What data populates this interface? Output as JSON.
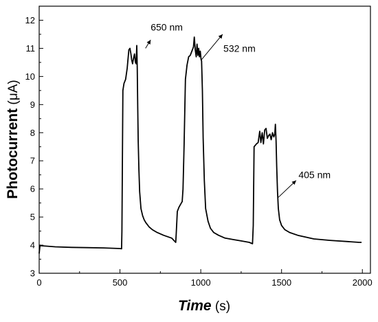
{
  "chart_data": {
    "type": "line",
    "title": "",
    "xlabel_main": "Time",
    "xlabel_unit": " (s)",
    "ylabel_main": "Photocurrent",
    "ylabel_unit": " (μA)",
    "xlim": [
      0,
      2050
    ],
    "ylim": [
      3,
      12.5
    ],
    "xticks": [
      0,
      500,
      1000,
      1500,
      2000
    ],
    "xtick_labels": [
      "0",
      "500",
      "1000",
      "1500",
      "2000"
    ],
    "yticks": [
      3,
      4,
      5,
      6,
      7,
      8,
      9,
      10,
      11,
      12
    ],
    "ytick_labels": [
      "3",
      "4",
      "5",
      "6",
      "7",
      "8",
      "9",
      "10",
      "11",
      "12"
    ],
    "grid": false,
    "series": [
      {
        "color": "#000000",
        "x": [
          0,
          5,
          10,
          100,
          200,
          300,
          400,
          500,
          510,
          512,
          518,
          525,
          535,
          545,
          555,
          562,
          568,
          572,
          578,
          584,
          590,
          596,
          600,
          604,
          607,
          610,
          613,
          617,
          622,
          630,
          640,
          650,
          660,
          680,
          700,
          730,
          770,
          820,
          845,
          848,
          855,
          865,
          875,
          885,
          890,
          897,
          905,
          915,
          925,
          935,
          945,
          955,
          960,
          966,
          972,
          977,
          982,
          987,
          992,
          997,
          1002,
          1005,
          1010,
          1015,
          1022,
          1030,
          1045,
          1060,
          1080,
          1110,
          1150,
          1200,
          1250,
          1300,
          1320,
          1325,
          1330,
          1345,
          1355,
          1365,
          1372,
          1380,
          1388,
          1396,
          1404,
          1412,
          1420,
          1428,
          1436,
          1444,
          1452,
          1458,
          1462,
          1466,
          1470,
          1475,
          1480,
          1488,
          1500,
          1520,
          1550,
          1600,
          1700,
          1800,
          1900,
          1980,
          1995
        ],
        "y": [
          3.7,
          4.0,
          3.98,
          3.94,
          3.92,
          3.91,
          3.9,
          3.88,
          3.87,
          4.5,
          9.5,
          9.75,
          9.9,
          10.3,
          10.95,
          11.0,
          10.8,
          10.6,
          10.45,
          10.65,
          10.8,
          10.5,
          10.45,
          11.1,
          10.3,
          8.9,
          7.7,
          6.7,
          5.9,
          5.3,
          5.05,
          4.9,
          4.8,
          4.65,
          4.55,
          4.45,
          4.35,
          4.25,
          4.1,
          4.4,
          5.2,
          5.35,
          5.45,
          5.55,
          6.0,
          7.6,
          9.9,
          10.4,
          10.7,
          10.75,
          10.9,
          11.05,
          11.4,
          10.95,
          10.7,
          11.15,
          10.75,
          11.0,
          10.7,
          10.9,
          10.6,
          10.55,
          9.5,
          7.8,
          6.3,
          5.3,
          4.85,
          4.6,
          4.45,
          4.35,
          4.25,
          4.2,
          4.15,
          4.1,
          4.05,
          4.7,
          7.5,
          7.6,
          7.65,
          8.05,
          7.65,
          8.0,
          7.6,
          8.1,
          8.15,
          7.8,
          7.9,
          7.95,
          7.75,
          8.0,
          7.85,
          7.95,
          8.3,
          7.7,
          6.8,
          5.9,
          5.3,
          4.9,
          4.7,
          4.55,
          4.45,
          4.35,
          4.22,
          4.17,
          4.13,
          4.1,
          4.1
        ]
      }
    ],
    "annotations": [
      {
        "text": "650 nm",
        "x_from": 658,
        "y_from": 11.0,
        "x_to": 690,
        "y_to": 11.3,
        "label_x": 690,
        "label_y": 11.75
      },
      {
        "text": "532 nm",
        "x_from": 1005,
        "y_from": 10.6,
        "x_to": 1135,
        "y_to": 11.5,
        "label_x": 1140,
        "label_y": 11.0
      },
      {
        "text": "405 nm",
        "x_from": 1480,
        "y_from": 5.7,
        "x_to": 1590,
        "y_to": 6.3,
        "label_x": 1605,
        "label_y": 6.5
      }
    ]
  }
}
